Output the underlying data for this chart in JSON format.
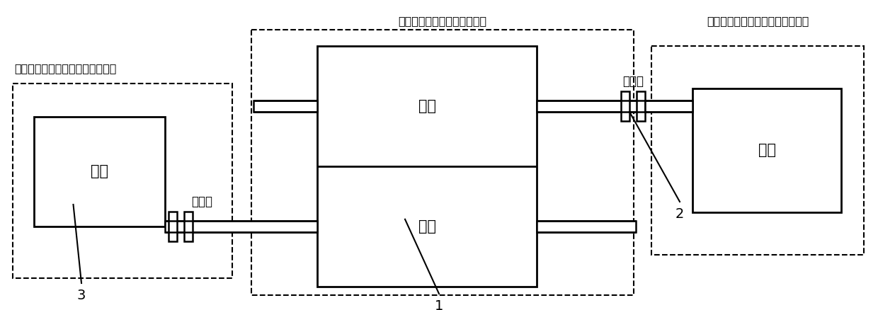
{
  "fig_width": 12.4,
  "fig_height": 4.38,
  "dpi": 100,
  "bg_color": "#ffffff",
  "title_top_center": "双转子类压缩机转子结构部分",
  "title_top_right": "双转子类压缩机转子电机驱动部分",
  "title_left": "双转子类压缩机转子电机驱动部分",
  "label_lianzhou_left": "联轴器",
  "label_lianzhou_right": "联轴器",
  "label_motor_left": "电机",
  "label_motor_right": "电机",
  "label_rotor_top": "转子",
  "label_rotor_bottom": "转子",
  "label_1": "1",
  "label_2": "2",
  "label_3": "3"
}
